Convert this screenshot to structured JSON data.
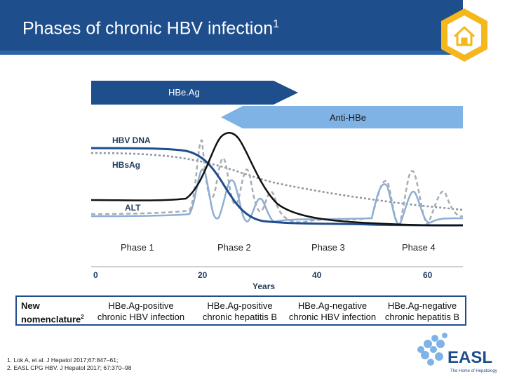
{
  "header": {
    "title": "Phases of chronic HBV infection",
    "title_sup": "1"
  },
  "home_button": {
    "icon": "home-icon"
  },
  "figure": {
    "hbeag_label": "HBe.Ag",
    "antihbe_label": "Anti-HBe",
    "curve_labels": {
      "hbv_dna": "HBV DNA",
      "hbsag": "HBsAg",
      "alt": "ALT"
    },
    "phases": [
      "Phase 1",
      "Phase 2",
      "Phase 3",
      "Phase 4"
    ],
    "x_ticks": [
      "0",
      "20",
      "40",
      "60"
    ],
    "x_axis_label": "Years"
  },
  "chart_data": {
    "type": "line",
    "title": "",
    "xlabel": "Years",
    "ylabel": "",
    "x_ticks": [
      0,
      20,
      40,
      60
    ],
    "series": [
      {
        "name": "HBV DNA",
        "style": "solid dark"
      },
      {
        "name": "HBsAg",
        "style": "dotted"
      },
      {
        "name": "ALT",
        "style": "solid light"
      }
    ],
    "bands": [
      {
        "name": "HBe.Ag",
        "range": "phase 1 – phase 2"
      },
      {
        "name": "Anti-HBe",
        "range": "phase 2 – end"
      }
    ],
    "phases": [
      "Phase 1",
      "Phase 2",
      "Phase 3",
      "Phase 4"
    ]
  },
  "nomenclature": {
    "label": "New nomenclature",
    "label_sup": "2",
    "columns": [
      "HBe.Ag-positive\nchronic HBV infection",
      "HBe.Ag-positive\nchronic hepatitis B",
      "HBe.Ag-negative\nchronic HBV infection",
      "HBe.Ag-negative\nchronic hepatitis B"
    ]
  },
  "references": [
    "1. Lok A, et al. J Hepatol 2017;67:847–61;",
    "2. EASL CPG HBV. J Hepatol 2017; 67:370–98"
  ],
  "logo": {
    "text": "EASL",
    "tagline": "The Home of Hepatology"
  },
  "colors": {
    "brand": "#1f4e8c",
    "band_light": "#7fb2e5",
    "accent": "#f5b81c"
  }
}
